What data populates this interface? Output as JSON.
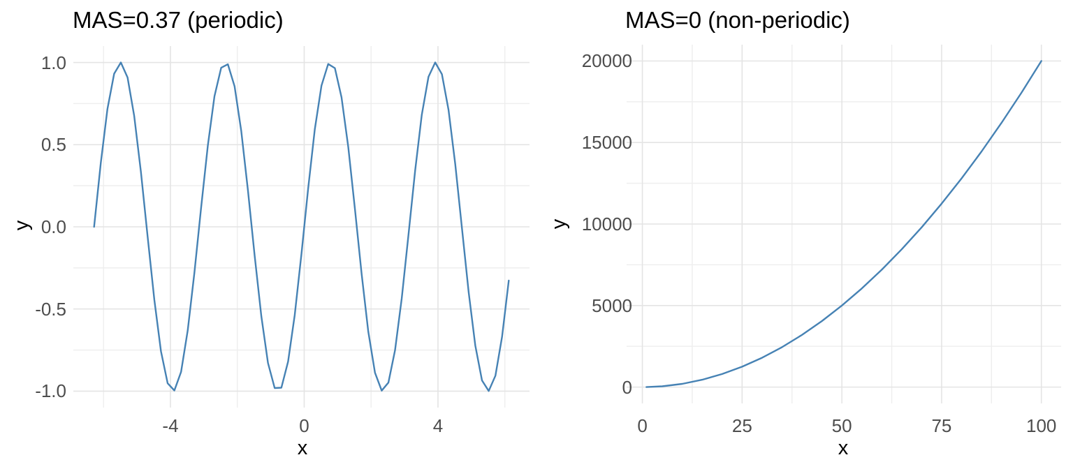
{
  "figure": {
    "background_color": "#ffffff",
    "panel_count": 2
  },
  "chart_data": [
    {
      "type": "line",
      "title": "MAS=0.37 (periodic)",
      "xlabel": "x",
      "ylabel": "y",
      "formula": "y = sin(2x), x from -2π to 2π step 0.2",
      "line_color": "#4682B4",
      "grid": true,
      "legend": "none",
      "xlim": [
        -6.283,
        6.117
      ],
      "ylim": [
        -1,
        1
      ],
      "x_ticks": [
        -4,
        0,
        4
      ],
      "x_tick_labels": [
        "-4",
        "0",
        "4"
      ],
      "x_minor_ticks": [
        -6,
        -2,
        2,
        6
      ],
      "y_ticks": [
        1.0,
        0.5,
        0.0,
        -0.5,
        -1.0
      ],
      "y_tick_labels": [
        "1.0",
        "0.5",
        "0.0",
        "-0.5",
        "-1.0"
      ],
      "y_minor_ticks": [
        0.75,
        0.25,
        -0.25,
        -0.75
      ],
      "x": [
        -6.283,
        -6.083,
        -5.883,
        -5.683,
        -5.483,
        -5.283,
        -5.083,
        -4.883,
        -4.683,
        -4.483,
        -4.283,
        -4.083,
        -3.883,
        -3.683,
        -3.483,
        -3.283,
        -3.083,
        -2.883,
        -2.683,
        -2.483,
        -2.283,
        -2.083,
        -1.883,
        -1.683,
        -1.483,
        -1.283,
        -1.083,
        -0.883,
        -0.683,
        -0.483,
        -0.283,
        -0.083,
        0.117,
        0.317,
        0.517,
        0.717,
        0.917,
        1.117,
        1.317,
        1.517,
        1.717,
        1.917,
        2.117,
        2.317,
        2.517,
        2.717,
        2.917,
        3.117,
        3.317,
        3.517,
        3.717,
        3.917,
        4.117,
        4.317,
        4.517,
        4.717,
        4.917,
        5.117,
        5.317,
        5.517,
        5.717,
        5.917,
        6.117
      ],
      "y": [
        0.0,
        0.389,
        0.717,
        0.932,
        1.0,
        0.909,
        0.675,
        0.335,
        -0.058,
        -0.443,
        -0.757,
        -0.952,
        -0.996,
        -0.883,
        -0.631,
        -0.279,
        0.117,
        0.494,
        0.794,
        0.968,
        0.989,
        0.855,
        0.585,
        0.223,
        -0.174,
        -0.544,
        -0.828,
        -0.981,
        -0.979,
        -0.82,
        -0.537,
        -0.166,
        0.232,
        0.592,
        0.859,
        0.991,
        0.966,
        0.788,
        0.487,
        0.108,
        -0.288,
        -0.638,
        -0.888,
        -0.997,
        -0.948,
        -0.751,
        -0.435,
        -0.05,
        0.343,
        0.682,
        0.913,
        1.0,
        0.929,
        0.711,
        0.381,
        -0.009,
        -0.398,
        -0.723,
        -0.935,
        -0.999,
        -0.906,
        -0.669,
        -0.327
      ]
    },
    {
      "type": "line",
      "title": "MAS=0 (non-periodic)",
      "xlabel": "x",
      "ylabel": "y",
      "formula": "y = 2*x^2, x from 1 to 100",
      "line_color": "#4682B4",
      "grid": true,
      "legend": "none",
      "xlim": [
        1,
        100
      ],
      "ylim": [
        0,
        20000
      ],
      "x_ticks": [
        0,
        25,
        50,
        75,
        100
      ],
      "x_tick_labels": [
        "0",
        "25",
        "50",
        "75",
        "100"
      ],
      "x_minor_ticks": [
        12.5,
        37.5,
        62.5,
        87.5
      ],
      "y_ticks": [
        20000,
        15000,
        10000,
        5000,
        0
      ],
      "y_tick_labels": [
        "20000",
        "15000",
        "10000",
        "5000",
        "0"
      ],
      "y_minor_ticks": [
        17500,
        12500,
        7500,
        2500
      ],
      "x": [
        1,
        5,
        10,
        15,
        20,
        25,
        30,
        35,
        40,
        45,
        50,
        55,
        60,
        65,
        70,
        75,
        80,
        85,
        90,
        95,
        100
      ],
      "y": [
        2,
        50,
        200,
        450,
        800,
        1250,
        1800,
        2450,
        3200,
        4050,
        5000,
        6050,
        7200,
        8450,
        9800,
        11250,
        12800,
        14450,
        16200,
        18050,
        20000
      ]
    }
  ],
  "style": {
    "major_grid_color": "#e4e4e4",
    "minor_grid_color": "#eeeeee",
    "tick_label_color": "#4d4d4d",
    "title_color": "#000000"
  }
}
